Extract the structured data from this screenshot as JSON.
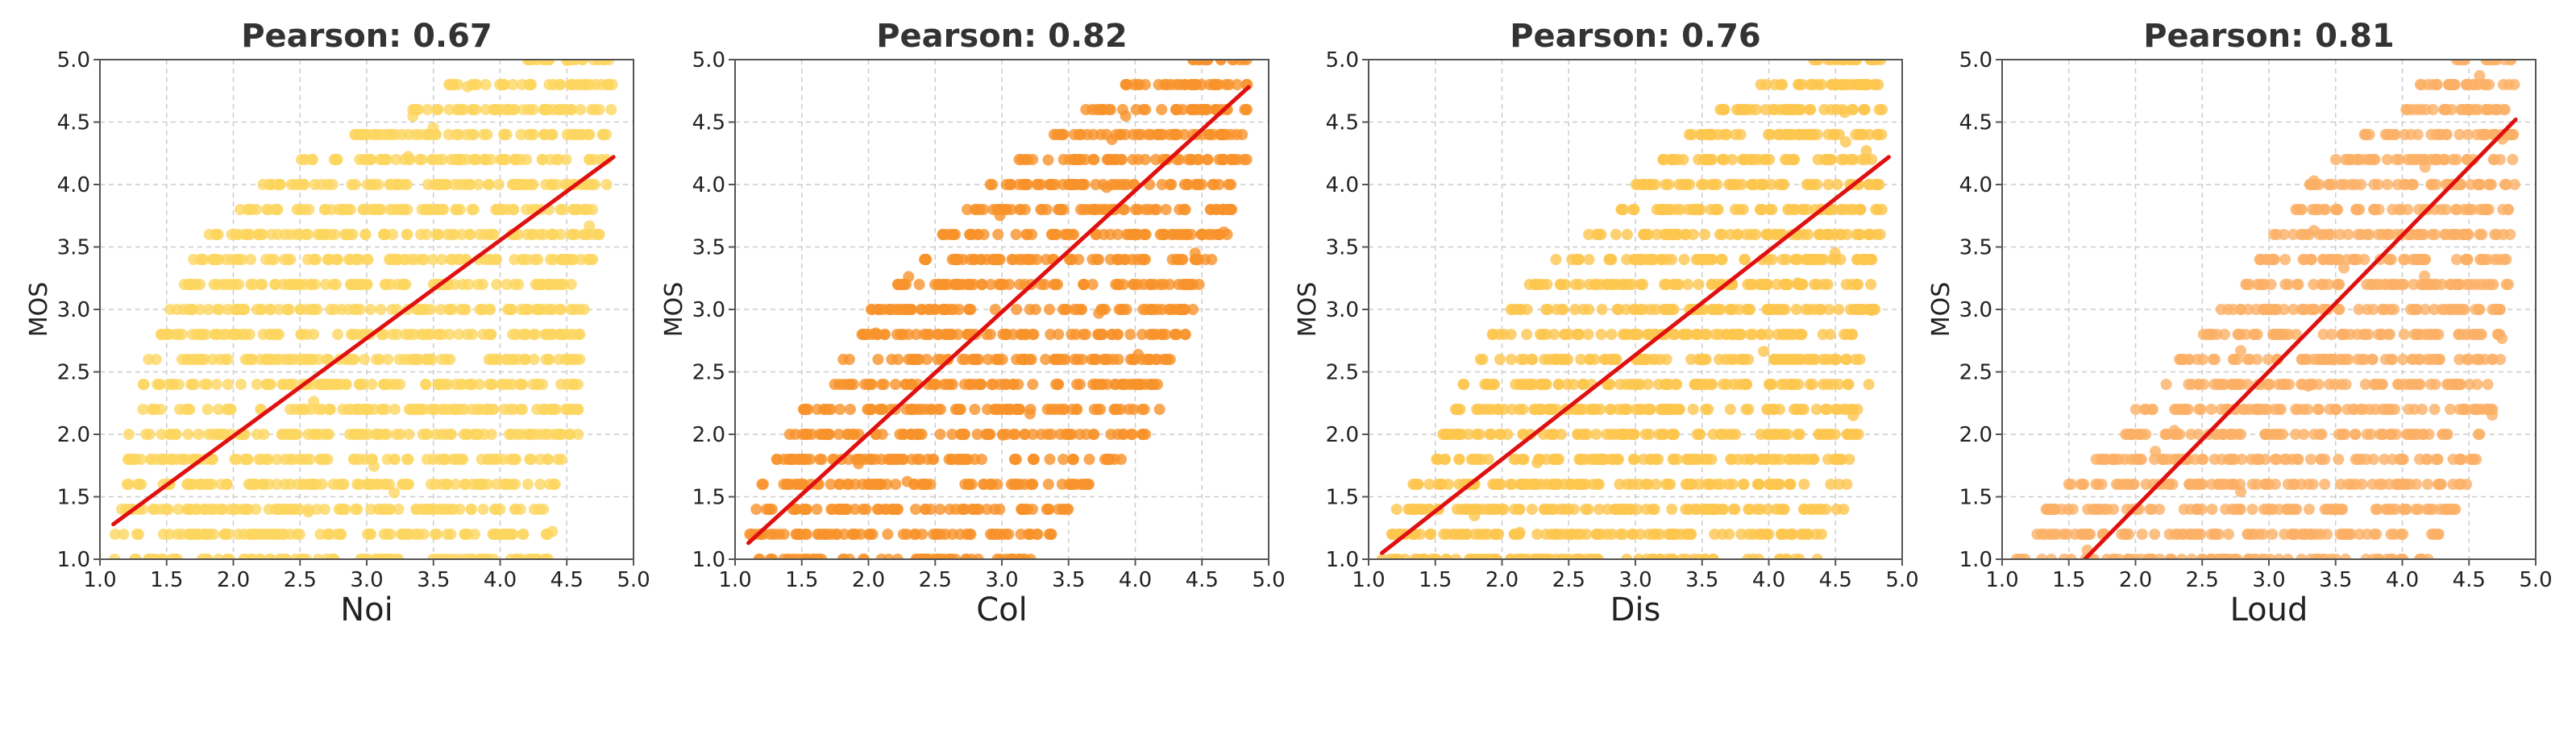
{
  "chart_data": [
    {
      "type": "scatter",
      "title": "Pearson: 0.67",
      "xlabel": "Noi",
      "ylabel": "MOS",
      "xlim": [
        1.0,
        5.0
      ],
      "ylim": [
        1.0,
        5.0
      ],
      "xticks": [
        "1.0",
        "1.5",
        "2.0",
        "2.5",
        "3.0",
        "3.5",
        "4.0",
        "4.5",
        "5.0"
      ],
      "yticks": [
        "1.0",
        "1.5",
        "2.0",
        "2.5",
        "3.0",
        "3.5",
        "4.0",
        "4.5",
        "5.0"
      ],
      "grid": true,
      "pearson": 0.67,
      "point_color": "#fdd660",
      "fit_line": {
        "color": "#e01010",
        "x": [
          1.1,
          4.85
        ],
        "y": [
          1.28,
          4.22
        ]
      },
      "x_range_by_y": [
        [
          1.0,
          1.1,
          4.4
        ],
        [
          1.2,
          1.1,
          4.4
        ],
        [
          1.4,
          1.15,
          4.4
        ],
        [
          1.6,
          1.2,
          4.45
        ],
        [
          1.8,
          1.2,
          4.5
        ],
        [
          2.0,
          1.2,
          4.6
        ],
        [
          2.2,
          1.25,
          4.6
        ],
        [
          2.4,
          1.3,
          4.6
        ],
        [
          2.6,
          1.35,
          4.6
        ],
        [
          2.8,
          1.4,
          4.6
        ],
        [
          3.0,
          1.5,
          4.65
        ],
        [
          3.2,
          1.6,
          4.65
        ],
        [
          3.4,
          1.7,
          4.7
        ],
        [
          3.6,
          1.8,
          4.75
        ],
        [
          3.8,
          2.0,
          4.75
        ],
        [
          4.0,
          2.2,
          4.8
        ],
        [
          4.2,
          2.5,
          4.8
        ],
        [
          4.4,
          2.9,
          4.8
        ],
        [
          4.6,
          3.3,
          4.85
        ],
        [
          4.8,
          3.6,
          4.85
        ],
        [
          5.0,
          4.2,
          4.85
        ]
      ]
    },
    {
      "type": "scatter",
      "title": "Pearson: 0.82",
      "xlabel": "Col",
      "ylabel": "MOS",
      "xlim": [
        1.0,
        5.0
      ],
      "ylim": [
        1.0,
        5.0
      ],
      "xticks": [
        "1.0",
        "1.5",
        "2.0",
        "2.5",
        "3.0",
        "3.5",
        "4.0",
        "4.5",
        "5.0"
      ],
      "yticks": [
        "1.0",
        "1.5",
        "2.0",
        "2.5",
        "3.0",
        "3.5",
        "4.0",
        "4.5",
        "5.0"
      ],
      "grid": true,
      "pearson": 0.82,
      "point_color": "#f7922a",
      "fit_line": {
        "color": "#e01010",
        "x": [
          1.1,
          4.85
        ],
        "y": [
          1.13,
          4.78
        ]
      },
      "x_range_by_y": [
        [
          1.0,
          1.1,
          3.3
        ],
        [
          1.2,
          1.1,
          3.4
        ],
        [
          1.4,
          1.15,
          3.5
        ],
        [
          1.6,
          1.2,
          3.7
        ],
        [
          1.8,
          1.3,
          3.9
        ],
        [
          2.0,
          1.4,
          4.1
        ],
        [
          2.2,
          1.5,
          4.2
        ],
        [
          2.4,
          1.6,
          4.2
        ],
        [
          2.6,
          1.8,
          4.3
        ],
        [
          2.8,
          1.9,
          4.4
        ],
        [
          3.0,
          2.0,
          4.5
        ],
        [
          3.2,
          2.2,
          4.5
        ],
        [
          3.4,
          2.4,
          4.6
        ],
        [
          3.6,
          2.5,
          4.7
        ],
        [
          3.8,
          2.7,
          4.75
        ],
        [
          4.0,
          2.9,
          4.8
        ],
        [
          4.2,
          3.1,
          4.85
        ],
        [
          4.4,
          3.3,
          4.85
        ],
        [
          4.6,
          3.6,
          4.85
        ],
        [
          4.8,
          3.9,
          4.85
        ],
        [
          5.0,
          4.4,
          4.85
        ]
      ]
    },
    {
      "type": "scatter",
      "title": "Pearson: 0.76",
      "xlabel": "Dis",
      "ylabel": "MOS",
      "xlim": [
        1.0,
        5.0
      ],
      "ylim": [
        1.0,
        5.0
      ],
      "xticks": [
        "1.0",
        "1.5",
        "2.0",
        "2.5",
        "3.0",
        "3.5",
        "4.0",
        "4.5",
        "5.0"
      ],
      "yticks": [
        "1.0",
        "1.5",
        "2.0",
        "2.5",
        "3.0",
        "3.5",
        "4.0",
        "4.5",
        "5.0"
      ],
      "grid": true,
      "pearson": 0.76,
      "point_color": "#fcc64e",
      "fit_line": {
        "color": "#e01010",
        "x": [
          1.1,
          4.9
        ],
        "y": [
          1.05,
          4.22
        ]
      },
      "x_range_by_y": [
        [
          1.0,
          1.1,
          4.4
        ],
        [
          1.2,
          1.15,
          4.5
        ],
        [
          1.4,
          1.2,
          4.6
        ],
        [
          1.6,
          1.3,
          4.6
        ],
        [
          1.8,
          1.4,
          4.65
        ],
        [
          2.0,
          1.5,
          4.7
        ],
        [
          2.2,
          1.6,
          4.7
        ],
        [
          2.4,
          1.7,
          4.75
        ],
        [
          2.6,
          1.8,
          4.75
        ],
        [
          2.8,
          1.9,
          4.75
        ],
        [
          3.0,
          2.0,
          4.8
        ],
        [
          3.2,
          2.2,
          4.8
        ],
        [
          3.4,
          2.4,
          4.8
        ],
        [
          3.6,
          2.6,
          4.85
        ],
        [
          3.8,
          2.8,
          4.85
        ],
        [
          4.0,
          3.0,
          4.85
        ],
        [
          4.2,
          3.2,
          4.85
        ],
        [
          4.4,
          3.4,
          4.85
        ],
        [
          4.6,
          3.6,
          4.85
        ],
        [
          4.8,
          3.9,
          4.85
        ],
        [
          5.0,
          4.3,
          4.85
        ]
      ]
    },
    {
      "type": "scatter",
      "title": "Pearson: 0.81",
      "xlabel": "Loud",
      "ylabel": "MOS",
      "xlim": [
        1.0,
        5.0
      ],
      "ylim": [
        1.0,
        5.0
      ],
      "xticks": [
        "1.0",
        "1.5",
        "2.0",
        "2.5",
        "3.0",
        "3.5",
        "4.0",
        "4.5",
        "5.0"
      ],
      "yticks": [
        "1.0",
        "1.5",
        "2.0",
        "2.5",
        "3.0",
        "3.5",
        "4.0",
        "4.5",
        "5.0"
      ],
      "grid": true,
      "pearson": 0.81,
      "point_color": "#fbb066",
      "fit_line": {
        "color": "#e01010",
        "x": [
          1.62,
          4.85
        ],
        "y": [
          1.0,
          4.52
        ]
      },
      "x_range_by_y": [
        [
          1.0,
          1.1,
          4.2
        ],
        [
          1.2,
          1.2,
          4.3
        ],
        [
          1.4,
          1.3,
          4.4
        ],
        [
          1.6,
          1.5,
          4.5
        ],
        [
          1.8,
          1.7,
          4.6
        ],
        [
          2.0,
          1.9,
          4.6
        ],
        [
          2.2,
          2.0,
          4.7
        ],
        [
          2.4,
          2.2,
          4.7
        ],
        [
          2.6,
          2.3,
          4.75
        ],
        [
          2.8,
          2.5,
          4.75
        ],
        [
          3.0,
          2.6,
          4.8
        ],
        [
          3.2,
          2.8,
          4.8
        ],
        [
          3.4,
          2.9,
          4.8
        ],
        [
          3.6,
          3.0,
          4.85
        ],
        [
          3.8,
          3.2,
          4.85
        ],
        [
          4.0,
          3.3,
          4.85
        ],
        [
          4.2,
          3.5,
          4.85
        ],
        [
          4.4,
          3.7,
          4.85
        ],
        [
          4.6,
          3.9,
          4.85
        ],
        [
          4.8,
          4.1,
          4.85
        ],
        [
          5.0,
          4.4,
          4.85
        ]
      ]
    }
  ]
}
